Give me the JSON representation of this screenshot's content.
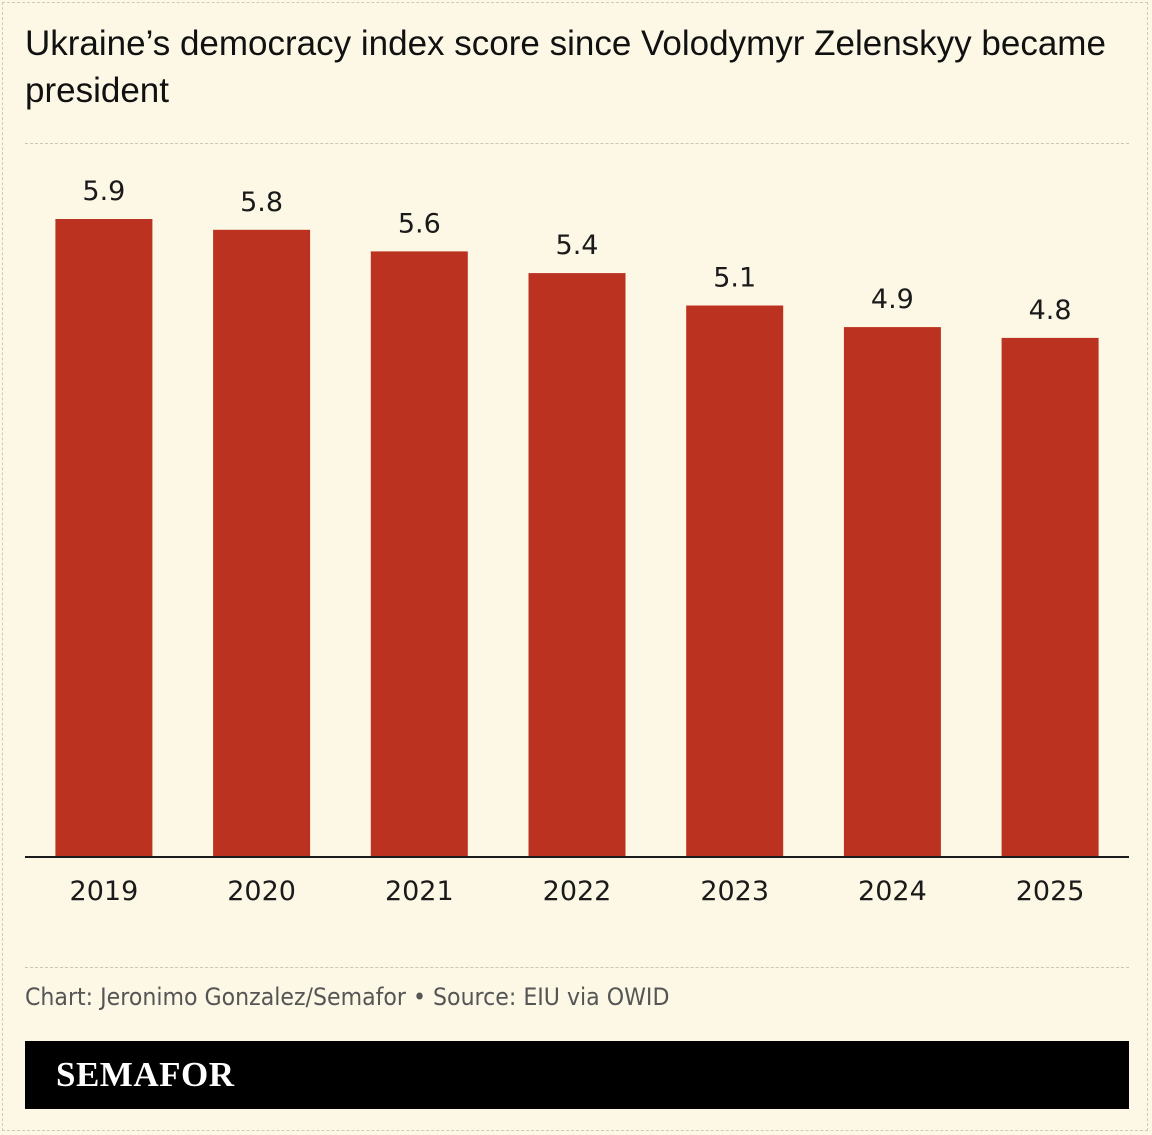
{
  "header": {
    "title": "Ukraine’s democracy index score since Volodymyr Zelenskyy became president"
  },
  "footer": {
    "source": "Chart: Jeronimo Gonzalez/Semafor • Source: EIU via OWID",
    "brand": "SEMAFOR"
  },
  "colors": {
    "bar": "#bc3220",
    "background": "#fcf8e5",
    "brand_bar": "#000000"
  },
  "chart_data": {
    "type": "bar",
    "title": "Ukraine’s democracy index score since Volodymyr Zelenskyy became president",
    "categories": [
      "2019",
      "2020",
      "2021",
      "2022",
      "2023",
      "2024",
      "2025"
    ],
    "values": [
      5.9,
      5.8,
      5.6,
      5.4,
      5.1,
      4.9,
      4.8
    ],
    "value_labels": [
      "5.9",
      "5.8",
      "5.6",
      "5.4",
      "5.1",
      "4.9",
      "4.8"
    ],
    "xlabel": "",
    "ylabel": "",
    "ylim": [
      0,
      5.9
    ],
    "grid": false,
    "legend": "none"
  }
}
